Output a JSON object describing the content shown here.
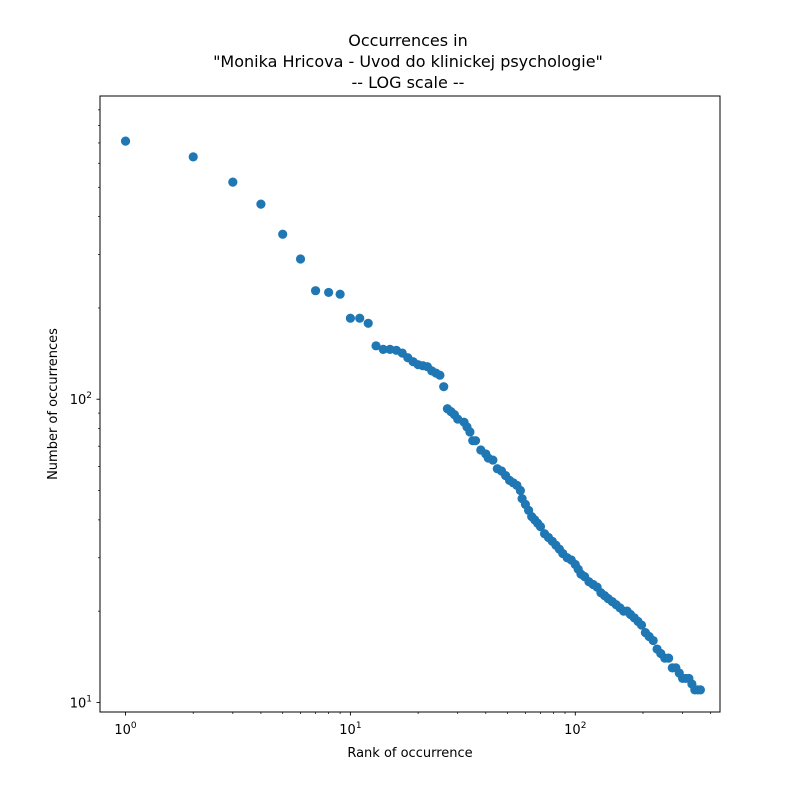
{
  "chart_data": {
    "type": "scatter",
    "title": [
      "Occurrences in",
      "\"Monika Hricova - Uvod do klinickej psychologie\"",
      "-- LOG scale --"
    ],
    "xlabel": "Rank of occurrence",
    "ylabel": "Number of occurrences",
    "x_scale": "log",
    "y_scale": "log",
    "xlim": [
      0.77,
      440
    ],
    "ylim": [
      9.3,
      1000
    ],
    "x_ticks": [
      {
        "value": 1,
        "base": "10",
        "exp": "0"
      },
      {
        "value": 10,
        "base": "10",
        "exp": "1"
      },
      {
        "value": 100,
        "base": "10",
        "exp": "2"
      }
    ],
    "y_ticks": [
      {
        "value": 10,
        "base": "10",
        "exp": "1"
      },
      {
        "value": 100,
        "base": "10",
        "exp": "2"
      }
    ],
    "grid": false,
    "marker_color": "#1f77b4",
    "points": [
      [
        1,
        710
      ],
      [
        2,
        630
      ],
      [
        3,
        520
      ],
      [
        4,
        440
      ],
      [
        5,
        350
      ],
      [
        6,
        290
      ],
      [
        7,
        228
      ],
      [
        8,
        225
      ],
      [
        9,
        222
      ],
      [
        10,
        185
      ],
      [
        11,
        185
      ],
      [
        12,
        178
      ],
      [
        13,
        150
      ],
      [
        14,
        146
      ],
      [
        15,
        146
      ],
      [
        16,
        145
      ],
      [
        17,
        142
      ],
      [
        18,
        137
      ],
      [
        19,
        133
      ],
      [
        20,
        130
      ],
      [
        21,
        129
      ],
      [
        22,
        128
      ],
      [
        23,
        124
      ],
      [
        24,
        122
      ],
      [
        25,
        120
      ],
      [
        26,
        110
      ],
      [
        27,
        93
      ],
      [
        28,
        91
      ],
      [
        29,
        89
      ],
      [
        30,
        86
      ],
      [
        32,
        84
      ],
      [
        33,
        81
      ],
      [
        34,
        78
      ],
      [
        35,
        73
      ],
      [
        36,
        73
      ],
      [
        38,
        68
      ],
      [
        40,
        66
      ],
      [
        41,
        64
      ],
      [
        43,
        63
      ],
      [
        45,
        59
      ],
      [
        47,
        58
      ],
      [
        49,
        56
      ],
      [
        51,
        54
      ],
      [
        53,
        53
      ],
      [
        55,
        52
      ],
      [
        57,
        50
      ],
      [
        58,
        47
      ],
      [
        60,
        45
      ],
      [
        62,
        43
      ],
      [
        64,
        41
      ],
      [
        66,
        40
      ],
      [
        68,
        39
      ],
      [
        70,
        38
      ],
      [
        73,
        36
      ],
      [
        76,
        35
      ],
      [
        79,
        34
      ],
      [
        82,
        33
      ],
      [
        85,
        32
      ],
      [
        88,
        31
      ],
      [
        92,
        30
      ],
      [
        96,
        29.5
      ],
      [
        100,
        28.5
      ],
      [
        103,
        27.5
      ],
      [
        106,
        26.5
      ],
      [
        110,
        26
      ],
      [
        115,
        25
      ],
      [
        120,
        24.5
      ],
      [
        125,
        24
      ],
      [
        130,
        23
      ],
      [
        135,
        22.5
      ],
      [
        140,
        22
      ],
      [
        146,
        21.5
      ],
      [
        152,
        21
      ],
      [
        158,
        20.5
      ],
      [
        164,
        20
      ],
      [
        170,
        20
      ],
      [
        176,
        19.5
      ],
      [
        183,
        19
      ],
      [
        190,
        18.5
      ],
      [
        197,
        18
      ],
      [
        205,
        17
      ],
      [
        213,
        16.5
      ],
      [
        222,
        16
      ],
      [
        231,
        15
      ],
      [
        240,
        14.5
      ],
      [
        250,
        14
      ],
      [
        260,
        14
      ],
      [
        270,
        13
      ],
      [
        280,
        13
      ],
      [
        290,
        12.5
      ],
      [
        300,
        12
      ],
      [
        310,
        12
      ],
      [
        320,
        12
      ],
      [
        330,
        11.5
      ],
      [
        340,
        11
      ],
      [
        350,
        11
      ],
      [
        360,
        11
      ]
    ]
  }
}
